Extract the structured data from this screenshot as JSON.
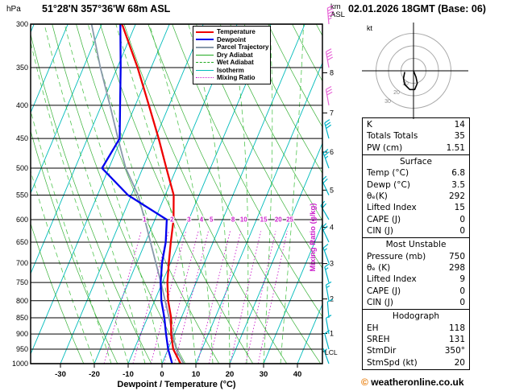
{
  "header": {
    "station": "51°28'N 357°36'W 68m ASL",
    "datetime": "02.01.2026 18GMT (Base: 06)",
    "pressure_unit": "hPa",
    "altitude_unit_line1": "km",
    "altitude_unit_line2": "ASL"
  },
  "legend": {
    "items": [
      {
        "label": "Temperature",
        "color": "#ee0000",
        "style": "solid",
        "weight": 2
      },
      {
        "label": "Dewpoint",
        "color": "#0000ee",
        "style": "solid",
        "weight": 2
      },
      {
        "label": "Parcel Trajectory",
        "color": "#8899aa",
        "style": "solid",
        "weight": 2
      },
      {
        "label": "Dry Adiabat",
        "color": "#22aa22",
        "style": "solid",
        "weight": 1
      },
      {
        "label": "Wet Adiabat",
        "color": "#22aa22",
        "style": "dashed",
        "weight": 1
      },
      {
        "label": "Isotherm",
        "color": "#00bbbb",
        "style": "solid",
        "weight": 1
      },
      {
        "label": "Mixing Ratio",
        "color": "#cc22cc",
        "style": "dotted",
        "weight": 1
      }
    ]
  },
  "axes": {
    "pressure_ticks": [
      300,
      350,
      400,
      450,
      500,
      550,
      600,
      650,
      700,
      750,
      800,
      850,
      900,
      950,
      1000
    ],
    "temp_ticks": [
      -30,
      -20,
      -10,
      0,
      10,
      20,
      30,
      40
    ],
    "km_ticks": [
      1,
      2,
      3,
      4,
      5,
      6,
      7,
      8
    ],
    "xlabel": "Dewpoint / Temperature (°C)",
    "right_label": "Mixing Ratio (g/kg)",
    "lcl_label": "LCL"
  },
  "chart_data": {
    "type": "skewt-logp",
    "pressure_range": [
      300,
      1000
    ],
    "temp_axis_range": [
      -30,
      40
    ],
    "mixing_ratio_lines": [
      1,
      2,
      3,
      4,
      5,
      8,
      10,
      15,
      20,
      25
    ],
    "isotherms_C": {
      "min": -80,
      "max": 40,
      "step": 10
    },
    "dry_adiabats_K": {
      "min": 250,
      "max": 440,
      "step": 10
    },
    "wet_adiabats_C": {
      "min": -20,
      "max": 35,
      "step": 5
    },
    "temperature_profile": [
      [
        1005,
        6.8
      ],
      [
        1000,
        5.5
      ],
      [
        950,
        1.5
      ],
      [
        900,
        -1.0
      ],
      [
        850,
        -3.0
      ],
      [
        800,
        -6.0
      ],
      [
        750,
        -8.5
      ],
      [
        700,
        -10.5
      ],
      [
        650,
        -12.5
      ],
      [
        600,
        -14.5
      ],
      [
        550,
        -17.5
      ],
      [
        500,
        -23.0
      ],
      [
        450,
        -29.0
      ],
      [
        400,
        -36.0
      ],
      [
        350,
        -44.0
      ],
      [
        300,
        -54.0
      ]
    ],
    "dewpoint_profile": [
      [
        1005,
        3.5
      ],
      [
        1000,
        3.0
      ],
      [
        950,
        0.0
      ],
      [
        900,
        -2.5
      ],
      [
        850,
        -5.0
      ],
      [
        800,
        -8.0
      ],
      [
        750,
        -10.5
      ],
      [
        700,
        -12.5
      ],
      [
        650,
        -14.0
      ],
      [
        600,
        -16.5
      ],
      [
        550,
        -31.0
      ],
      [
        500,
        -42.0
      ],
      [
        450,
        -40.5
      ],
      [
        400,
        -44.5
      ],
      [
        350,
        -49.0
      ],
      [
        300,
        -54.5
      ]
    ],
    "parcel_profile": [
      [
        1005,
        6.8
      ],
      [
        958,
        2.9
      ],
      [
        900,
        -0.6
      ],
      [
        850,
        -3.6
      ],
      [
        800,
        -6.9
      ],
      [
        750,
        -10.4
      ],
      [
        700,
        -14.3
      ],
      [
        650,
        -18.5
      ],
      [
        600,
        -23.0
      ],
      [
        550,
        -28.0
      ],
      [
        500,
        -35.0
      ],
      [
        450,
        -41.0
      ],
      [
        400,
        -47.5
      ],
      [
        350,
        -55.0
      ],
      [
        300,
        -63.0
      ]
    ],
    "lcl_pressure": 958,
    "wind_barbs": [
      {
        "p": 1000,
        "dir": 340,
        "spd": 5
      },
      {
        "p": 950,
        "dir": 345,
        "spd": 10
      },
      {
        "p": 900,
        "dir": 350,
        "spd": 10
      },
      {
        "p": 850,
        "dir": 355,
        "spd": 10
      },
      {
        "p": 800,
        "dir": 350,
        "spd": 15
      },
      {
        "p": 750,
        "dir": 345,
        "spd": 15
      },
      {
        "p": 700,
        "dir": 340,
        "spd": 15
      },
      {
        "p": 650,
        "dir": 335,
        "spd": 20
      },
      {
        "p": 600,
        "dir": 330,
        "spd": 20
      },
      {
        "p": 550,
        "dir": 335,
        "spd": 20
      },
      {
        "p": 500,
        "dir": 340,
        "spd": 25
      },
      {
        "p": 450,
        "dir": 345,
        "spd": 30
      },
      {
        "p": 400,
        "dir": 350,
        "spd": 30
      },
      {
        "p": 350,
        "dir": 350,
        "spd": 40
      },
      {
        "p": 300,
        "dir": 355,
        "spd": 45
      }
    ],
    "colors": {
      "temperature": "#ee0000",
      "dewpoint": "#0000ee",
      "parcel": "#8899aa",
      "dry_adiabat": "#22aa22",
      "wet_adiabat": "#33bb33",
      "isotherm": "#00bbbb",
      "mixing_ratio": "#cc22cc",
      "isobar": "#000000",
      "barb_low": "#00b4c8",
      "barb_high": "#e868d8"
    }
  },
  "hodograph": {
    "unit": "kt",
    "rings_kt": [
      10,
      20,
      30
    ],
    "trace_uv_kt": [
      [
        0,
        0
      ],
      [
        2,
        -5
      ],
      [
        3,
        -10
      ],
      [
        1,
        -15
      ],
      [
        -3,
        -15
      ],
      [
        -7,
        -11
      ],
      [
        -8,
        -6
      ],
      [
        -7,
        -1
      ]
    ]
  },
  "table": {
    "groups": [
      {
        "title": "",
        "rows": [
          [
            "K",
            "14"
          ],
          [
            "Totals Totals",
            "35"
          ],
          [
            "PW (cm)",
            "1.51"
          ]
        ]
      },
      {
        "title": "Surface",
        "rows": [
          [
            "Temp (°C)",
            "6.8"
          ],
          [
            "Dewp (°C)",
            "3.5"
          ],
          [
            "θₑ(K)",
            "292"
          ],
          [
            "Lifted Index",
            "15"
          ],
          [
            "CAPE (J)",
            "0"
          ],
          [
            "CIN (J)",
            "0"
          ]
        ]
      },
      {
        "title": "Most Unstable",
        "rows": [
          [
            "Pressure (mb)",
            "750"
          ],
          [
            "θₑ (K)",
            "298"
          ],
          [
            "Lifted Index",
            "9"
          ],
          [
            "CAPE (J)",
            "0"
          ],
          [
            "CIN (J)",
            "0"
          ]
        ]
      },
      {
        "title": "Hodograph",
        "rows": [
          [
            "EH",
            "118"
          ],
          [
            "SREH",
            "131"
          ],
          [
            "StmDir",
            "350°"
          ],
          [
            "StmSpd (kt)",
            "20"
          ]
        ]
      }
    ]
  },
  "footer": {
    "symbol": "©",
    "text": "weatheronline.co.uk"
  }
}
